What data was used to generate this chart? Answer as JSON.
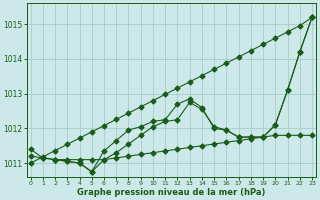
{
  "xlabel": "Graphe pression niveau de la mer (hPa)",
  "background_color": "#cce8e8",
  "grid_color": "#aacccc",
  "line_color": "#1a5c1a",
  "xlim": [
    -0.3,
    23.3
  ],
  "ylim": [
    1010.6,
    1015.6
  ],
  "yticks": [
    1011,
    1012,
    1013,
    1014,
    1015
  ],
  "xticks": [
    0,
    1,
    2,
    3,
    4,
    5,
    6,
    7,
    8,
    9,
    10,
    11,
    12,
    13,
    14,
    15,
    16,
    17,
    18,
    19,
    20,
    21,
    22,
    23
  ],
  "series": [
    {
      "x": [
        0,
        1,
        2,
        3,
        4,
        5,
        6,
        7,
        8,
        9,
        10,
        11,
        12,
        13,
        14,
        15,
        16,
        17,
        18,
        19,
        20,
        21,
        22,
        23
      ],
      "y": [
        1011.2,
        1011.15,
        1011.1,
        1011.1,
        1011.1,
        1011.1,
        1011.1,
        1011.15,
        1011.2,
        1011.25,
        1011.3,
        1011.35,
        1011.4,
        1011.45,
        1011.5,
        1011.55,
        1011.6,
        1011.65,
        1011.7,
        1011.75,
        1011.8,
        1011.8,
        1011.8,
        1011.8
      ]
    },
    {
      "x": [
        0,
        1,
        2,
        3,
        4,
        5,
        6,
        7,
        8,
        9,
        10,
        11,
        12,
        13,
        14,
        15,
        16,
        17,
        18,
        19,
        20,
        21,
        22,
        23
      ],
      "y": [
        1011.0,
        1011.18,
        1011.36,
        1011.54,
        1011.72,
        1011.9,
        1012.08,
        1012.26,
        1012.44,
        1012.62,
        1012.8,
        1012.98,
        1013.16,
        1013.34,
        1013.52,
        1013.7,
        1013.88,
        1014.06,
        1014.24,
        1014.42,
        1014.6,
        1014.78,
        1014.96,
        1015.2
      ]
    },
    {
      "x": [
        0,
        1,
        2,
        3,
        4,
        5,
        6,
        7,
        8,
        9,
        10,
        11,
        12,
        13,
        14,
        15,
        16,
        17,
        18,
        19,
        20,
        21,
        22,
        23
      ],
      "y": [
        1011.4,
        1011.15,
        1011.1,
        1011.05,
        1011.0,
        1010.75,
        1011.1,
        1011.3,
        1011.55,
        1011.8,
        1012.05,
        1012.2,
        1012.25,
        1012.75,
        1012.55,
        1012.05,
        1011.95,
        1011.75,
        1011.75,
        1011.75,
        1012.1,
        1013.1,
        1014.2,
        1015.2
      ]
    },
    {
      "x": [
        2,
        3,
        4,
        5,
        6,
        7,
        8,
        9,
        10,
        11,
        12,
        13,
        14,
        15,
        16,
        17,
        18,
        19,
        20,
        21,
        22,
        23
      ],
      "y": [
        1011.1,
        1011.05,
        1011.0,
        1010.75,
        1011.35,
        1011.65,
        1011.95,
        1012.05,
        1012.2,
        1012.25,
        1012.7,
        1012.85,
        1012.6,
        1012.0,
        1011.95,
        1011.75,
        1011.75,
        1011.75,
        1012.1,
        1013.1,
        1014.2,
        1015.2
      ]
    }
  ]
}
